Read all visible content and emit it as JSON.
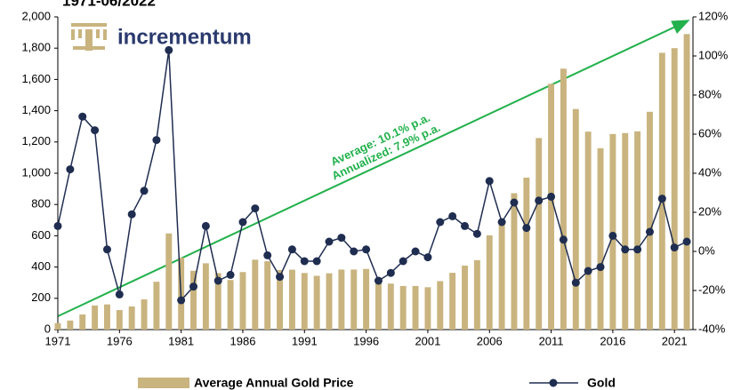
{
  "chart_data": {
    "type": "bar_line",
    "title": "1971-06/2022",
    "logo": "incrementum",
    "annotations": [
      "Average: 10.1% p.a.",
      "Annualized: 7.9% p.a."
    ],
    "x": [
      1971,
      1972,
      1973,
      1974,
      1975,
      1976,
      1977,
      1978,
      1979,
      1980,
      1981,
      1982,
      1983,
      1984,
      1985,
      1986,
      1987,
      1988,
      1989,
      1990,
      1991,
      1992,
      1993,
      1994,
      1995,
      1996,
      1997,
      1998,
      1999,
      2000,
      2001,
      2002,
      2003,
      2004,
      2005,
      2006,
      2007,
      2008,
      2009,
      2010,
      2011,
      2012,
      2013,
      2014,
      2015,
      2016,
      2017,
      2018,
      2019,
      2020,
      2021,
      2022
    ],
    "xlim": [
      1971,
      2022.5
    ],
    "xticks": [
      1971,
      1976,
      1981,
      1986,
      1991,
      1996,
      2001,
      2006,
      2011,
      2016,
      2021
    ],
    "ylim": [
      0,
      2000
    ],
    "yticks": [
      0,
      200,
      400,
      600,
      800,
      {
        "value": 1000,
        "label": "1,000"
      },
      {
        "value": 1200,
        "label": "1,200"
      },
      {
        "value": 1400,
        "label": "1,400"
      },
      {
        "value": 1600,
        "label": "1,600"
      },
      {
        "value": 1800,
        "label": "1,800"
      },
      {
        "value": 2000,
        "label": "2,000"
      }
    ],
    "y2lim": [
      -40,
      120
    ],
    "y2ticks": [
      {
        "value": -40,
        "label": "-40%"
      },
      {
        "value": -20,
        "label": "-20%"
      },
      {
        "value": 0,
        "label": "0%"
      },
      {
        "value": 20,
        "label": "20%"
      },
      {
        "value": 40,
        "label": "40%"
      },
      {
        "value": 60,
        "label": "60%"
      },
      {
        "value": 80,
        "label": "80%"
      },
      {
        "value": 100,
        "label": "100%"
      },
      {
        "value": 120,
        "label": "120%"
      }
    ],
    "series": [
      {
        "name": "Average Annual Gold Price",
        "type": "bar",
        "color": "#c9b47f",
        "values": [
          41,
          58,
          97,
          154,
          161,
          125,
          148,
          193,
          306,
          615,
          460,
          376,
          424,
          361,
          317,
          368,
          447,
          437,
          381,
          383,
          362,
          344,
          360,
          384,
          384,
          388,
          331,
          294,
          279,
          279,
          271,
          310,
          363,
          409,
          444,
          603,
          695,
          872,
          972,
          1225,
          1572,
          1669,
          1411,
          1266,
          1160,
          1251,
          1257,
          1268,
          1393,
          1770,
          1800,
          1890
        ]
      },
      {
        "name": "Gold",
        "type": "line",
        "axis": "y2",
        "color": "#1f2d50",
        "values": [
          13,
          42,
          69,
          62,
          1,
          -22,
          19,
          31,
          57,
          103,
          -25,
          -18,
          13,
          -15,
          -12,
          15,
          22,
          -2,
          -13,
          1,
          -5,
          -5,
          5,
          7,
          0,
          1,
          -15,
          -11,
          -5,
          0,
          -3,
          15,
          18,
          13,
          9,
          36,
          15,
          25,
          12,
          26,
          28,
          6,
          -16,
          -10,
          -8,
          8,
          1,
          1,
          10,
          27,
          2,
          5
        ]
      }
    ]
  }
}
